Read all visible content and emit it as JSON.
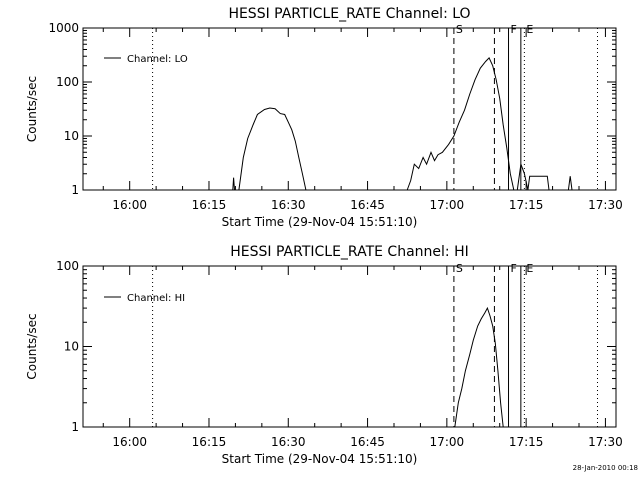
{
  "footer": {
    "timestamp": "28-Jan-2010 00:18"
  },
  "chart_data": [
    {
      "type": "line",
      "title": "HESSI PARTICLE_RATE Channel: LO",
      "xlabel": "Start Time (29-Nov-04 15:51:10)",
      "ylabel": "Counts/sec",
      "y_scale": "log",
      "ylim": [
        1,
        1000
      ],
      "xlim": [
        "15:51:10",
        "17:32:00"
      ],
      "x_ticks": [
        "16:00",
        "16:15",
        "16:30",
        "16:45",
        "17:00",
        "17:15",
        "17:30"
      ],
      "y_ticks": [
        "1",
        "10",
        "100",
        "1000"
      ],
      "legend": {
        "position": "top-left",
        "entries": [
          "Channel: LO"
        ]
      },
      "markers": [
        {
          "time": "16:04:20",
          "label": "",
          "style": "dotted"
        },
        {
          "time": "17:01:20",
          "label": "S",
          "style": "dashed"
        },
        {
          "time": "17:09:00",
          "label": "",
          "style": "dashed"
        },
        {
          "time": "17:11:40",
          "label": "F",
          "style": "solid"
        },
        {
          "time": "17:14:00",
          "label": "",
          "style": "solid"
        },
        {
          "time": "17:14:40",
          "label": "E",
          "style": "dotted"
        },
        {
          "time": "17:28:30",
          "label": "",
          "style": "dotted"
        }
      ],
      "series": [
        {
          "name": "Channel: LO",
          "segments": [
            [
              [
                "16:19:30",
                1
              ],
              [
                "16:19:40",
                1.7
              ],
              [
                "16:19:50",
                1
              ],
              [
                "16:20:40",
                1
              ],
              [
                "16:21:30",
                4
              ],
              [
                "16:22:20",
                9
              ],
              [
                "16:23:20",
                16
              ],
              [
                "16:24:10",
                25
              ],
              [
                "16:25:30",
                31
              ],
              [
                "16:26:30",
                33
              ],
              [
                "16:27:30",
                32
              ],
              [
                "16:28:30",
                26
              ],
              [
                "16:29:20",
                25
              ],
              [
                "16:30:00",
                18
              ],
              [
                "16:30:40",
                13
              ],
              [
                "16:31:20",
                8
              ],
              [
                "16:32:00",
                4
              ],
              [
                "16:32:40",
                2
              ],
              [
                "16:33:20",
                1
              ]
            ],
            [
              [
                "16:52:30",
                1
              ],
              [
                "16:53:10",
                1.5
              ],
              [
                "16:53:50",
                3
              ],
              [
                "16:54:40",
                2.5
              ],
              [
                "16:55:30",
                4
              ],
              [
                "16:56:10",
                3
              ],
              [
                "16:57:00",
                5
              ],
              [
                "16:57:40",
                3.5
              ],
              [
                "16:58:20",
                4.5
              ],
              [
                "16:59:10",
                5
              ],
              [
                "17:00:20",
                7
              ],
              [
                "17:01:20",
                10
              ],
              [
                "17:02:20",
                18
              ],
              [
                "17:03:20",
                30
              ],
              [
                "17:04:20",
                60
              ],
              [
                "17:05:20",
                110
              ],
              [
                "17:06:20",
                180
              ],
              [
                "17:07:20",
                240
              ],
              [
                "17:08:00",
                280
              ],
              [
                "17:08:40",
                200
              ],
              [
                "17:09:20",
                110
              ],
              [
                "17:10:00",
                50
              ],
              [
                "17:10:40",
                16
              ],
              [
                "17:11:20",
                6
              ],
              [
                "17:12:00",
                2
              ],
              [
                "17:12:40",
                1
              ]
            ],
            [
              [
                "17:13:20",
                1
              ],
              [
                "17:14:00",
                3
              ],
              [
                "17:14:40",
                2
              ],
              [
                "17:15:20",
                1
              ],
              [
                "17:15:40",
                1.8
              ],
              [
                "17:16:20",
                1.8
              ],
              [
                "17:17:20",
                1.8
              ],
              [
                "17:18:20",
                1.8
              ],
              [
                "17:19:00",
                1.8
              ],
              [
                "17:19:20",
                1
              ]
            ],
            [
              [
                "17:23:00",
                1
              ],
              [
                "17:23:20",
                1.8
              ],
              [
                "17:23:40",
                1
              ]
            ]
          ]
        }
      ]
    },
    {
      "type": "line",
      "title": "HESSI PARTICLE_RATE Channel: HI",
      "xlabel": "Start Time (29-Nov-04 15:51:10)",
      "ylabel": "Counts/sec",
      "y_scale": "log",
      "ylim": [
        1,
        100
      ],
      "xlim": [
        "15:51:10",
        "17:32:00"
      ],
      "x_ticks": [
        "16:00",
        "16:15",
        "16:30",
        "16:45",
        "17:00",
        "17:15",
        "17:30"
      ],
      "y_ticks": [
        "1",
        "10",
        "100"
      ],
      "legend": {
        "position": "top-left",
        "entries": [
          "Channel: HI"
        ]
      },
      "markers": [
        {
          "time": "16:04:20",
          "label": "",
          "style": "dotted"
        },
        {
          "time": "17:01:20",
          "label": "S",
          "style": "dashed"
        },
        {
          "time": "17:09:00",
          "label": "",
          "style": "dashed"
        },
        {
          "time": "17:11:40",
          "label": "F",
          "style": "solid"
        },
        {
          "time": "17:14:00",
          "label": "",
          "style": "solid"
        },
        {
          "time": "17:14:40",
          "label": "E",
          "style": "dotted"
        },
        {
          "time": "17:28:30",
          "label": "",
          "style": "dotted"
        }
      ],
      "series": [
        {
          "name": "Channel: HI",
          "segments": [
            [
              [
                "17:01:30",
                1
              ],
              [
                "17:02:10",
                2
              ],
              [
                "17:02:50",
                3
              ],
              [
                "17:03:30",
                5
              ],
              [
                "17:04:20",
                8
              ],
              [
                "17:05:00",
                12
              ],
              [
                "17:05:50",
                18
              ],
              [
                "17:06:30",
                22
              ],
              [
                "17:07:10",
                26
              ],
              [
                "17:07:40",
                30
              ],
              [
                "17:08:10",
                24
              ],
              [
                "17:08:40",
                18
              ],
              [
                "17:09:10",
                11
              ],
              [
                "17:09:40",
                5
              ],
              [
                "17:10:10",
                2
              ],
              [
                "17:10:40",
                1
              ]
            ]
          ]
        }
      ]
    }
  ]
}
